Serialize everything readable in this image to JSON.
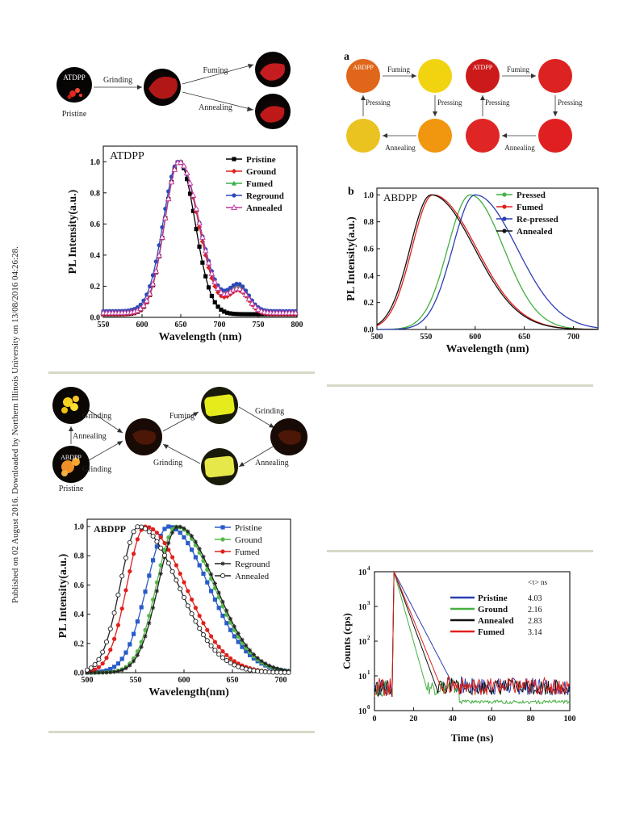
{
  "sidebar_note": "Published on 02 August 2016. Downloaded by Northern Illinois University on 13/08/2016 04:26:28.",
  "fig1_scheme": {
    "sample": "ATDPP",
    "pristine": "Pristine",
    "grinding": "Grinding",
    "fuming": "Fuming",
    "annealing": "Annealing"
  },
  "fig2_scheme": {
    "panel": "a",
    "left_sample": "ABDPP",
    "right_sample": "ATDPP",
    "fuming": "Fuming",
    "pressing": "Pressing",
    "annealing": "Annealing",
    "left_colors": [
      "#e0661a",
      "#f2d30f",
      "#f0960f",
      "#ebc320"
    ],
    "right_colors": [
      "#cc1a1a",
      "#dd2222",
      "#e02020",
      "#e02525"
    ]
  },
  "fig3_scheme": {
    "sample": "ABDPP",
    "pristine": "Pristine",
    "grinding": "Grinding",
    "fuming": "Fuming",
    "annealing": "Annealing"
  },
  "fig4": {
    "legend_header": "<τ> ns"
  },
  "chart_data": [
    {
      "type": "line",
      "title": "ATDPP",
      "xlabel": "Wavelength (nm)",
      "ylabel": "PL Intensity(a.u.)",
      "xlim": [
        550,
        800
      ],
      "ylim": [
        0,
        1.1
      ],
      "xticks": [
        550,
        600,
        650,
        700,
        750,
        800
      ],
      "yticks": [
        0.0,
        0.2,
        0.4,
        0.6,
        0.8,
        1.0
      ],
      "legend_position": "top-right",
      "series": [
        {
          "name": "Pristine",
          "color": "#000000",
          "marker": "square",
          "peak": 648,
          "left_width": 22,
          "right_width": 24,
          "shoulder": 0.0,
          "base": 0.02
        },
        {
          "name": "Ground",
          "color": "#e0201b",
          "marker": "diamond",
          "peak": 648,
          "left_width": 22,
          "right_width": 29,
          "shoulder": 0.15,
          "base": 0.02
        },
        {
          "name": "Fumed",
          "color": "#38b048",
          "marker": "triangle",
          "peak": 648,
          "left_width": 22,
          "right_width": 30,
          "shoulder": 0.17,
          "base": 0.03
        },
        {
          "name": "Reground",
          "color": "#2a4bb8",
          "marker": "circle",
          "peak": 647,
          "left_width": 23,
          "right_width": 31,
          "shoulder": 0.17,
          "base": 0.04
        },
        {
          "name": "Annealed",
          "color": "#c0369a",
          "marker": "triangle-open",
          "peak": 648,
          "left_width": 22,
          "right_width": 30,
          "shoulder": 0.15,
          "base": 0.03
        }
      ]
    },
    {
      "type": "line",
      "title": "ABDPP",
      "panel": "b",
      "xlabel": "Wavelength (nm)",
      "ylabel": "PL Intensity(a.u.)",
      "xlim": [
        500,
        725
      ],
      "ylim": [
        0,
        1.05
      ],
      "xticks": [
        500,
        550,
        600,
        650,
        700
      ],
      "yticks": [
        0.0,
        0.2,
        0.4,
        0.6,
        0.8,
        1.0
      ],
      "legend_position": "top-right",
      "series": [
        {
          "name": "Pressed",
          "color": "#44b040",
          "peak": 595,
          "left_width": 27,
          "right_width": 40
        },
        {
          "name": "Fumed",
          "color": "#e0201b",
          "peak": 557,
          "left_width": 25,
          "right_width": 52
        },
        {
          "name": "Re-pressed",
          "color": "#2a3fb0",
          "peak": 600,
          "left_width": 27,
          "right_width": 50
        },
        {
          "name": "Annealed",
          "color": "#111111",
          "peak": 555,
          "left_width": 25,
          "right_width": 52
        }
      ]
    },
    {
      "type": "line",
      "title": "ABDPP",
      "xlabel": "Wavelength(nm)",
      "ylabel": "PL Intensity(a.u.)",
      "xlim": [
        500,
        710
      ],
      "ylim": [
        0,
        1.05
      ],
      "xticks": [
        500,
        550,
        600,
        650,
        700
      ],
      "yticks": [
        0.0,
        0.2,
        0.4,
        0.6,
        0.8,
        1.0
      ],
      "legend_position": "top-right",
      "series": [
        {
          "name": "Pristine",
          "color": "#2a5bc8",
          "marker": "square",
          "peak": 584,
          "left_width": 26,
          "right_width": 48
        },
        {
          "name": "Ground",
          "color": "#55b848",
          "marker": "circle",
          "peak": 592,
          "left_width": 24,
          "right_width": 45
        },
        {
          "name": "Fumed",
          "color": "#e0201b",
          "marker": "circle",
          "peak": 560,
          "left_width": 22,
          "right_width": 48
        },
        {
          "name": "Reground",
          "color": "#222222",
          "marker": "star",
          "peak": 594,
          "left_width": 24,
          "right_width": 45
        },
        {
          "name": "Annealed",
          "color": "#222222",
          "marker": "circle-open",
          "peak": 553,
          "left_width": 22,
          "right_width": 48
        }
      ]
    },
    {
      "type": "line",
      "xlabel": "Time (ns)",
      "ylabel": "Counts (cps)",
      "xlim": [
        0,
        100
      ],
      "ylim": [
        1,
        10000
      ],
      "yscale": "log",
      "xticks": [
        0,
        20,
        40,
        60,
        80,
        100
      ],
      "yticks": [
        "10^0",
        "10^1",
        "10^2",
        "10^3",
        "10^4"
      ],
      "legend_position": "top-right",
      "series": [
        {
          "name": "Pristine",
          "tau": "4.03",
          "color": "#2a3fb0"
        },
        {
          "name": "Ground",
          "tau": "2.16",
          "color": "#44b040"
        },
        {
          "name": "Annealed",
          "tau": "2.83",
          "color": "#111111"
        },
        {
          "name": "Fumed",
          "tau": "3.14",
          "color": "#e0201b"
        }
      ]
    }
  ]
}
